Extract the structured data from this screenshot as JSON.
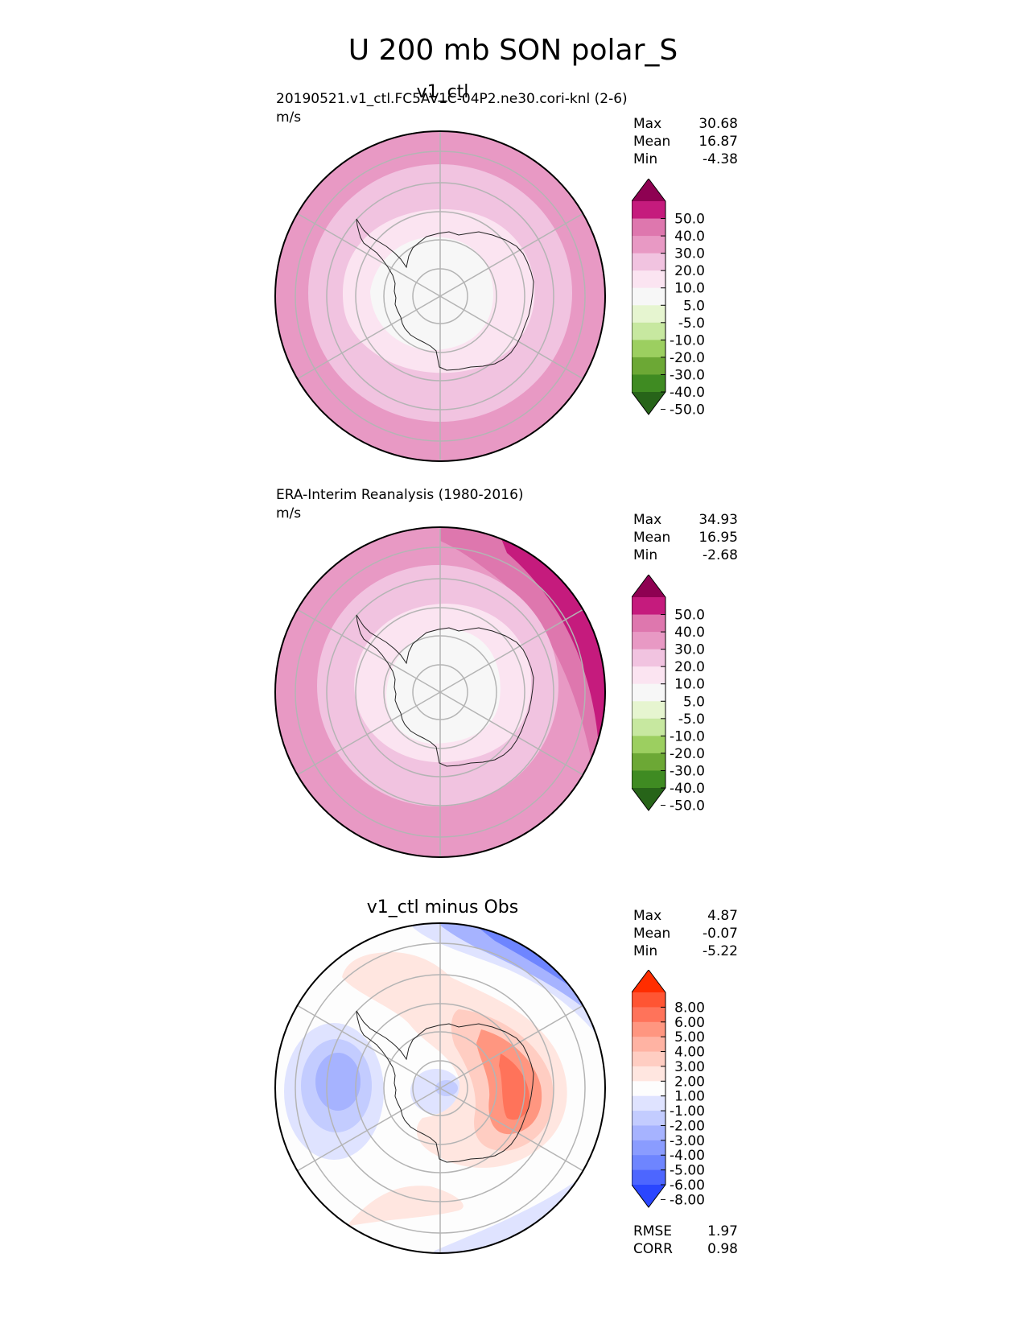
{
  "figure": {
    "title": "U 200 mb SON polar_S"
  },
  "panels": [
    {
      "id": "test",
      "title": "v1_ctl",
      "subtitle": "20190521.v1_ctl.FC5AV1C-04P2.ne30.cori-knl (2-6)",
      "units": "m/s",
      "stats": {
        "max_label": "Max",
        "max": "30.68",
        "mean_label": "Mean",
        "mean": "16.87",
        "min_label": "Min",
        "min": "-4.38"
      }
    },
    {
      "id": "ref",
      "title": "",
      "subtitle": "ERA-Interim Reanalysis (1980-2016)",
      "units": "m/s",
      "stats": {
        "max_label": "Max",
        "max": "34.93",
        "mean_label": "Mean",
        "mean": "16.95",
        "min_label": "Min",
        "min": "-2.68"
      }
    },
    {
      "id": "diff",
      "title": "v1_ctl minus Obs",
      "subtitle": "",
      "units": "",
      "stats": {
        "max_label": "Max",
        "max": "4.87",
        "mean_label": "Mean",
        "mean": "-0.07",
        "min_label": "Min",
        "min": "-5.22"
      },
      "metrics": {
        "rmse_label": "RMSE",
        "rmse": "1.97",
        "corr_label": "CORR",
        "corr": "0.98"
      }
    }
  ],
  "chart_data": [
    {
      "type": "heatmap",
      "projection": "south-polar-stereographic",
      "title": "v1_ctl",
      "variable": "U 200 mb",
      "season": "SON",
      "units": "m/s",
      "colorbar_ticks": [
        "50.0",
        "40.0",
        "30.0",
        "20.0",
        "10.0",
        "5.0",
        "-5.0",
        "-10.0",
        "-20.0",
        "-30.0",
        "-40.0",
        "-50.0"
      ],
      "colorbar_colors": [
        "#8e0152",
        "#c51b7d",
        "#de77ae",
        "#e899c4",
        "#f1c3e0",
        "#fbe4f1",
        "#f7f7f7",
        "#e6f5d0",
        "#c7e8a0",
        "#9ccf60",
        "#6ca835",
        "#3f8b22",
        "#276419"
      ],
      "approx_rings_ms": [
        {
          "lat_range": [
            -90,
            -75
          ],
          "value": 2
        },
        {
          "lat_range": [
            -75,
            -65
          ],
          "value": 7
        },
        {
          "lat_range": [
            -65,
            -55
          ],
          "value": 15
        },
        {
          "lat_range": [
            -55,
            -50
          ],
          "value": 22
        },
        {
          "lat_range": [
            -50,
            -40
          ],
          "value": 28
        }
      ],
      "max": 30.68,
      "mean": 16.87,
      "min": -4.38
    },
    {
      "type": "heatmap",
      "projection": "south-polar-stereographic",
      "title": "ERA-Interim Reanalysis (1980-2016)",
      "units": "m/s",
      "colorbar_ticks": [
        "50.0",
        "40.0",
        "30.0",
        "20.0",
        "10.0",
        "5.0",
        "-5.0",
        "-10.0",
        "-20.0",
        "-30.0",
        "-40.0",
        "-50.0"
      ],
      "colorbar_colors": [
        "#8e0152",
        "#c51b7d",
        "#de77ae",
        "#e899c4",
        "#f1c3e0",
        "#fbe4f1",
        "#f7f7f7",
        "#e6f5d0",
        "#c7e8a0",
        "#9ccf60",
        "#6ca835",
        "#3f8b22",
        "#276419"
      ],
      "approx_rings_ms": [
        {
          "lat_range": [
            -90,
            -75
          ],
          "value": 2
        },
        {
          "lat_range": [
            -75,
            -67
          ],
          "value": 8
        },
        {
          "lat_range": [
            -67,
            -57
          ],
          "value": 15
        },
        {
          "lat_range": [
            -57,
            -50
          ],
          "value": 22
        },
        {
          "lat_range": [
            -50,
            -40
          ],
          "value": 28
        }
      ],
      "max": 34.93,
      "mean": 16.95,
      "min": -2.68
    },
    {
      "type": "heatmap",
      "projection": "south-polar-stereographic",
      "title": "v1_ctl minus Obs",
      "units": "m/s",
      "colorbar_ticks": [
        "8.00",
        "6.00",
        "5.00",
        "4.00",
        "3.00",
        "2.00",
        "1.00",
        "-1.00",
        "-2.00",
        "-3.00",
        "-4.00",
        "-5.00",
        "-6.00",
        "-8.00"
      ],
      "colorbar_colors": [
        "#ff2d00",
        "#ff5533",
        "#ff735a",
        "#ff9680",
        "#ffb3a3",
        "#ffcdc2",
        "#ffe6e0",
        "#fdfdfd",
        "#dfe3ff",
        "#c3ccff",
        "#a6b3ff",
        "#8a9cff",
        "#6e85ff",
        "#4d66ff",
        "#2a46ff"
      ],
      "max": 4.87,
      "mean": -0.07,
      "min": -5.22,
      "rmse": 1.97,
      "corr": 0.98
    }
  ]
}
